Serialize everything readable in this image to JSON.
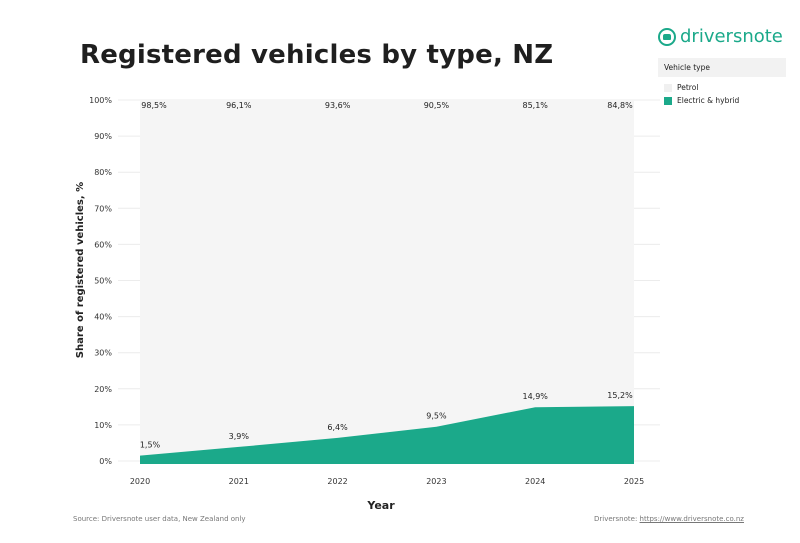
{
  "header": {
    "title": "Registered vehicles by type, NZ"
  },
  "brand": {
    "name": "driversnote",
    "icon": "car-icon",
    "color": "#1ba98a"
  },
  "legend": {
    "title": "Vehicle type",
    "items": [
      {
        "label": "Petrol",
        "color": "#f5f5f5"
      },
      {
        "label": "Electric & hybrid",
        "color": "#1ba98a"
      }
    ]
  },
  "footer": {
    "source": "Source: Driversnote user data, New Zealand only",
    "credit_prefix": "Driversnote: ",
    "credit_link": "https://www.driversnote.co.nz"
  },
  "chart_data": {
    "type": "area",
    "title": "Registered vehicles by type, NZ",
    "xlabel": "Year",
    "ylabel": "Share of registered vehicles, %",
    "ylim": [
      0,
      100
    ],
    "yticks": [
      "0%",
      "10%",
      "20%",
      "30%",
      "40%",
      "50%",
      "60%",
      "70%",
      "80%",
      "90%",
      "100%"
    ],
    "categories": [
      "2020",
      "2021",
      "2022",
      "2023",
      "2024",
      "2025"
    ],
    "series": [
      {
        "name": "Electric & hybrid",
        "values": [
          1.5,
          3.9,
          6.4,
          9.5,
          14.9,
          15.2
        ],
        "labels": [
          "1,5%",
          "3,9%",
          "6,4%",
          "9,5%",
          "14,9%",
          "15,2%"
        ]
      },
      {
        "name": "Petrol",
        "values": [
          98.5,
          96.1,
          93.6,
          90.5,
          85.1,
          84.8
        ],
        "labels": [
          "98,5%",
          "96,1%",
          "93,6%",
          "90,5%",
          "85,1%",
          "84,8%"
        ]
      }
    ],
    "stacked": true,
    "legend_position": "top-right"
  }
}
